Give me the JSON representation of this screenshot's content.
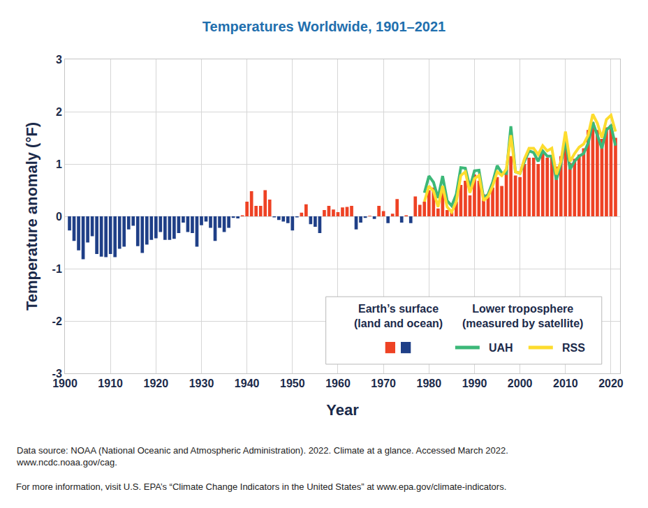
{
  "chart_data": {
    "type": "bar",
    "title": "Temperatures Worldwide, 1901–2021",
    "x_label": "Year",
    "y_label": "Temperature anomaly (°F)",
    "xlim": [
      1900,
      2022
    ],
    "xticks": [
      1900,
      1910,
      1920,
      1930,
      1940,
      1950,
      1960,
      1970,
      1980,
      1990,
      2000,
      2010,
      2020
    ],
    "ylim": [
      -3,
      3
    ],
    "yticks": [
      -3,
      -2,
      -1,
      0,
      1,
      2,
      3
    ],
    "grid": true,
    "legend": "lower right",
    "series": [
      {
        "name": "Earth’s surface (land and ocean)",
        "type": "bar",
        "x": [
          1901,
          1902,
          1903,
          1904,
          1905,
          1906,
          1907,
          1908,
          1909,
          1910,
          1911,
          1912,
          1913,
          1914,
          1915,
          1916,
          1917,
          1918,
          1919,
          1920,
          1921,
          1922,
          1923,
          1924,
          1925,
          1926,
          1927,
          1928,
          1929,
          1930,
          1931,
          1932,
          1933,
          1934,
          1935,
          1936,
          1937,
          1938,
          1939,
          1940,
          1941,
          1942,
          1943,
          1944,
          1945,
          1946,
          1947,
          1948,
          1949,
          1950,
          1951,
          1952,
          1953,
          1954,
          1955,
          1956,
          1957,
          1958,
          1959,
          1960,
          1961,
          1962,
          1963,
          1964,
          1965,
          1966,
          1967,
          1968,
          1969,
          1970,
          1971,
          1972,
          1973,
          1974,
          1975,
          1976,
          1977,
          1978,
          1979,
          1980,
          1981,
          1982,
          1983,
          1984,
          1985,
          1986,
          1987,
          1988,
          1989,
          1990,
          1991,
          1992,
          1993,
          1994,
          1995,
          1996,
          1997,
          1998,
          1999,
          2000,
          2001,
          2002,
          2003,
          2004,
          2005,
          2006,
          2007,
          2008,
          2009,
          2010,
          2011,
          2012,
          2013,
          2014,
          2015,
          2016,
          2017,
          2018,
          2019,
          2020,
          2021
        ],
        "values": [
          -0.27,
          -0.47,
          -0.65,
          -0.82,
          -0.5,
          -0.38,
          -0.72,
          -0.77,
          -0.78,
          -0.72,
          -0.78,
          -0.62,
          -0.58,
          -0.25,
          -0.18,
          -0.57,
          -0.7,
          -0.54,
          -0.45,
          -0.42,
          -0.3,
          -0.45,
          -0.45,
          -0.43,
          -0.32,
          -0.12,
          -0.3,
          -0.32,
          -0.58,
          -0.17,
          -0.1,
          -0.22,
          -0.47,
          -0.22,
          -0.3,
          -0.22,
          -0.03,
          -0.04,
          0.02,
          0.28,
          0.48,
          0.2,
          0.2,
          0.5,
          0.32,
          -0.02,
          -0.07,
          -0.1,
          -0.13,
          -0.27,
          -0.02,
          0.07,
          0.23,
          -0.15,
          -0.2,
          -0.32,
          0.12,
          0.2,
          0.13,
          0.08,
          0.17,
          0.18,
          0.2,
          -0.25,
          -0.12,
          -0.03,
          0.01,
          -0.05,
          0.2,
          0.1,
          -0.13,
          0.05,
          0.33,
          -0.12,
          0.02,
          -0.13,
          0.38,
          0.22,
          0.28,
          0.5,
          0.55,
          0.15,
          0.52,
          0.12,
          0.08,
          0.28,
          0.6,
          0.68,
          0.4,
          0.8,
          0.68,
          0.42,
          0.38,
          0.55,
          0.75,
          0.58,
          0.9,
          1.15,
          0.78,
          0.75,
          1.0,
          1.12,
          1.12,
          1.0,
          1.22,
          1.12,
          1.12,
          0.95,
          1.15,
          1.3,
          1.02,
          1.1,
          1.18,
          1.3,
          1.65,
          1.8,
          1.65,
          1.48,
          1.7,
          1.75,
          1.5
        ],
        "colors": [
          "#1f3f87",
          "#1f3f87",
          "#1f3f87",
          "#1f3f87",
          "#1f3f87",
          "#1f3f87",
          "#1f3f87",
          "#1f3f87",
          "#1f3f87",
          "#1f3f87",
          "#1f3f87",
          "#1f3f87",
          "#1f3f87",
          "#1f3f87",
          "#1f3f87",
          "#1f3f87",
          "#1f3f87",
          "#1f3f87",
          "#1f3f87",
          "#1f3f87",
          "#1f3f87",
          "#1f3f87",
          "#1f3f87",
          "#1f3f87",
          "#1f3f87",
          "#1f3f87",
          "#1f3f87",
          "#1f3f87",
          "#1f3f87",
          "#1f3f87",
          "#1f3f87",
          "#1f3f87",
          "#1f3f87",
          "#1f3f87",
          "#1f3f87",
          "#1f3f87",
          "#1f3f87",
          "#1f3f87",
          "#ee4224",
          "#ee4224",
          "#ee4224",
          "#ee4224",
          "#ee4224",
          "#ee4224",
          "#ee4224",
          "#1f3f87",
          "#1f3f87",
          "#1f3f87",
          "#1f3f87",
          "#1f3f87",
          "#1f3f87",
          "#ee4224",
          "#ee4224",
          "#1f3f87",
          "#1f3f87",
          "#1f3f87",
          "#ee4224",
          "#ee4224",
          "#ee4224",
          "#ee4224",
          "#ee4224",
          "#ee4224",
          "#ee4224",
          "#1f3f87",
          "#1f3f87",
          "#1f3f87",
          "#ee4224",
          "#1f3f87",
          "#ee4224",
          "#ee4224",
          "#1f3f87",
          "#ee4224",
          "#ee4224",
          "#1f3f87",
          "#ee4224",
          "#1f3f87",
          "#ee4224",
          "#ee4224",
          "#ee4224",
          "#ee4224",
          "#ee4224",
          "#ee4224",
          "#ee4224",
          "#ee4224",
          "#ee4224",
          "#ee4224",
          "#ee4224",
          "#ee4224",
          "#ee4224",
          "#ee4224",
          "#ee4224",
          "#ee4224",
          "#ee4224",
          "#ee4224",
          "#ee4224",
          "#ee4224",
          "#ee4224",
          "#ee4224",
          "#ee4224",
          "#ee4224",
          "#ee4224",
          "#ee4224",
          "#ee4224",
          "#ee4224",
          "#ee4224",
          "#ee4224",
          "#ee4224",
          "#ee4224",
          "#ee4224",
          "#ee4224",
          "#ee4224",
          "#ee4224",
          "#ee4224",
          "#ee4224",
          "#ee4224",
          "#ee4224",
          "#ee4224",
          "#ee4224",
          "#ee4224",
          "#ee4224",
          "#ee4224"
        ]
      },
      {
        "name": "UAH",
        "type": "line",
        "color": "#3cb878",
        "line_style": "solid",
        "group": "Lower troposphere (measured by satellite)",
        "x": [
          1979,
          1980,
          1981,
          1982,
          1983,
          1984,
          1985,
          1986,
          1987,
          1988,
          1989,
          1990,
          1991,
          1992,
          1993,
          1994,
          1995,
          1996,
          1997,
          1998,
          1999,
          2000,
          2001,
          2002,
          2003,
          2004,
          2005,
          2006,
          2007,
          2008,
          2009,
          2010,
          2011,
          2012,
          2013,
          2014,
          2015,
          2016,
          2017,
          2018,
          2019,
          2020,
          2021
        ],
        "values": [
          0.45,
          0.77,
          0.65,
          0.35,
          0.77,
          0.3,
          0.2,
          0.42,
          0.93,
          0.92,
          0.55,
          0.87,
          0.88,
          0.35,
          0.42,
          0.65,
          0.97,
          0.83,
          0.82,
          1.72,
          0.85,
          0.82,
          1.05,
          1.25,
          1.22,
          1.05,
          1.25,
          1.15,
          1.15,
          0.7,
          1.0,
          1.45,
          0.9,
          1.05,
          1.15,
          1.2,
          1.4,
          1.8,
          1.55,
          1.3,
          1.65,
          1.73,
          1.35
        ]
      },
      {
        "name": "RSS",
        "type": "line",
        "color": "#fddc2e",
        "line_style": "solid",
        "group": "Lower troposphere (measured by satellite)",
        "x": [
          1979,
          1980,
          1981,
          1982,
          1983,
          1984,
          1985,
          1986,
          1987,
          1988,
          1989,
          1990,
          1991,
          1992,
          1993,
          1994,
          1995,
          1996,
          1997,
          1998,
          1999,
          2000,
          2001,
          2002,
          2003,
          2004,
          2005,
          2006,
          2007,
          2008,
          2009,
          2010,
          2011,
          2012,
          2013,
          2014,
          2015,
          2016,
          2017,
          2018,
          2019,
          2020,
          2021
        ],
        "values": [
          0.28,
          0.58,
          0.48,
          0.18,
          0.58,
          0.18,
          0.08,
          0.28,
          0.78,
          0.85,
          0.45,
          0.72,
          0.78,
          0.3,
          0.38,
          0.58,
          0.85,
          0.78,
          0.9,
          1.55,
          0.85,
          0.82,
          1.1,
          1.3,
          1.3,
          1.18,
          1.35,
          1.25,
          1.3,
          0.8,
          1.05,
          1.62,
          1.05,
          1.2,
          1.32,
          1.38,
          1.55,
          1.95,
          1.78,
          1.5,
          1.85,
          1.93,
          1.62
        ]
      }
    ],
    "notes": [
      [
        "Data source: NOAA (National Oceanic and Atmospheric Administration). 2022. Climate at a glance. Accessed March 2022.",
        "www.ncdc.noaa.gov/cag."
      ],
      [
        "For more information, visit U.S. EPA’s “Climate Change Indicators in the United States” at www.epa.gov/climate-indicators."
      ]
    ]
  }
}
